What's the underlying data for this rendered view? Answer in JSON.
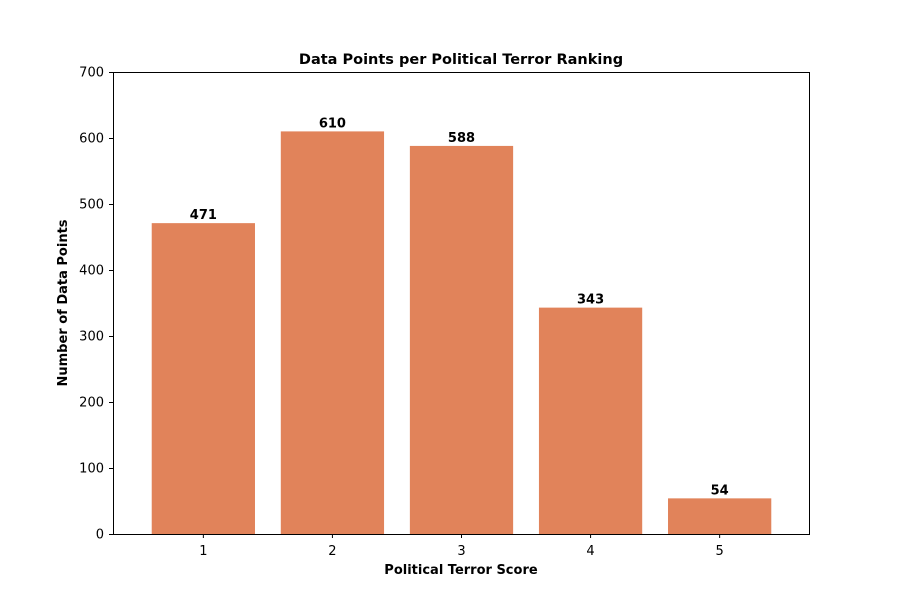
{
  "chart_data": {
    "type": "bar",
    "title": "Data Points per Political Terror Ranking",
    "xlabel": "Political Terror Score",
    "ylabel": "Number of Data Points",
    "categories": [
      "1",
      "2",
      "3",
      "4",
      "5"
    ],
    "values": [
      471,
      610,
      588,
      343,
      54
    ],
    "data_labels": [
      "471",
      "610",
      "588",
      "343",
      "54"
    ],
    "ylim": [
      0,
      700
    ],
    "yticks": [
      0,
      100,
      200,
      300,
      400,
      500,
      600,
      700
    ],
    "ytick_labels": [
      "0",
      "100",
      "200",
      "300",
      "400",
      "500",
      "600",
      "700"
    ],
    "grid": false,
    "bar_color": "#e1835a"
  }
}
